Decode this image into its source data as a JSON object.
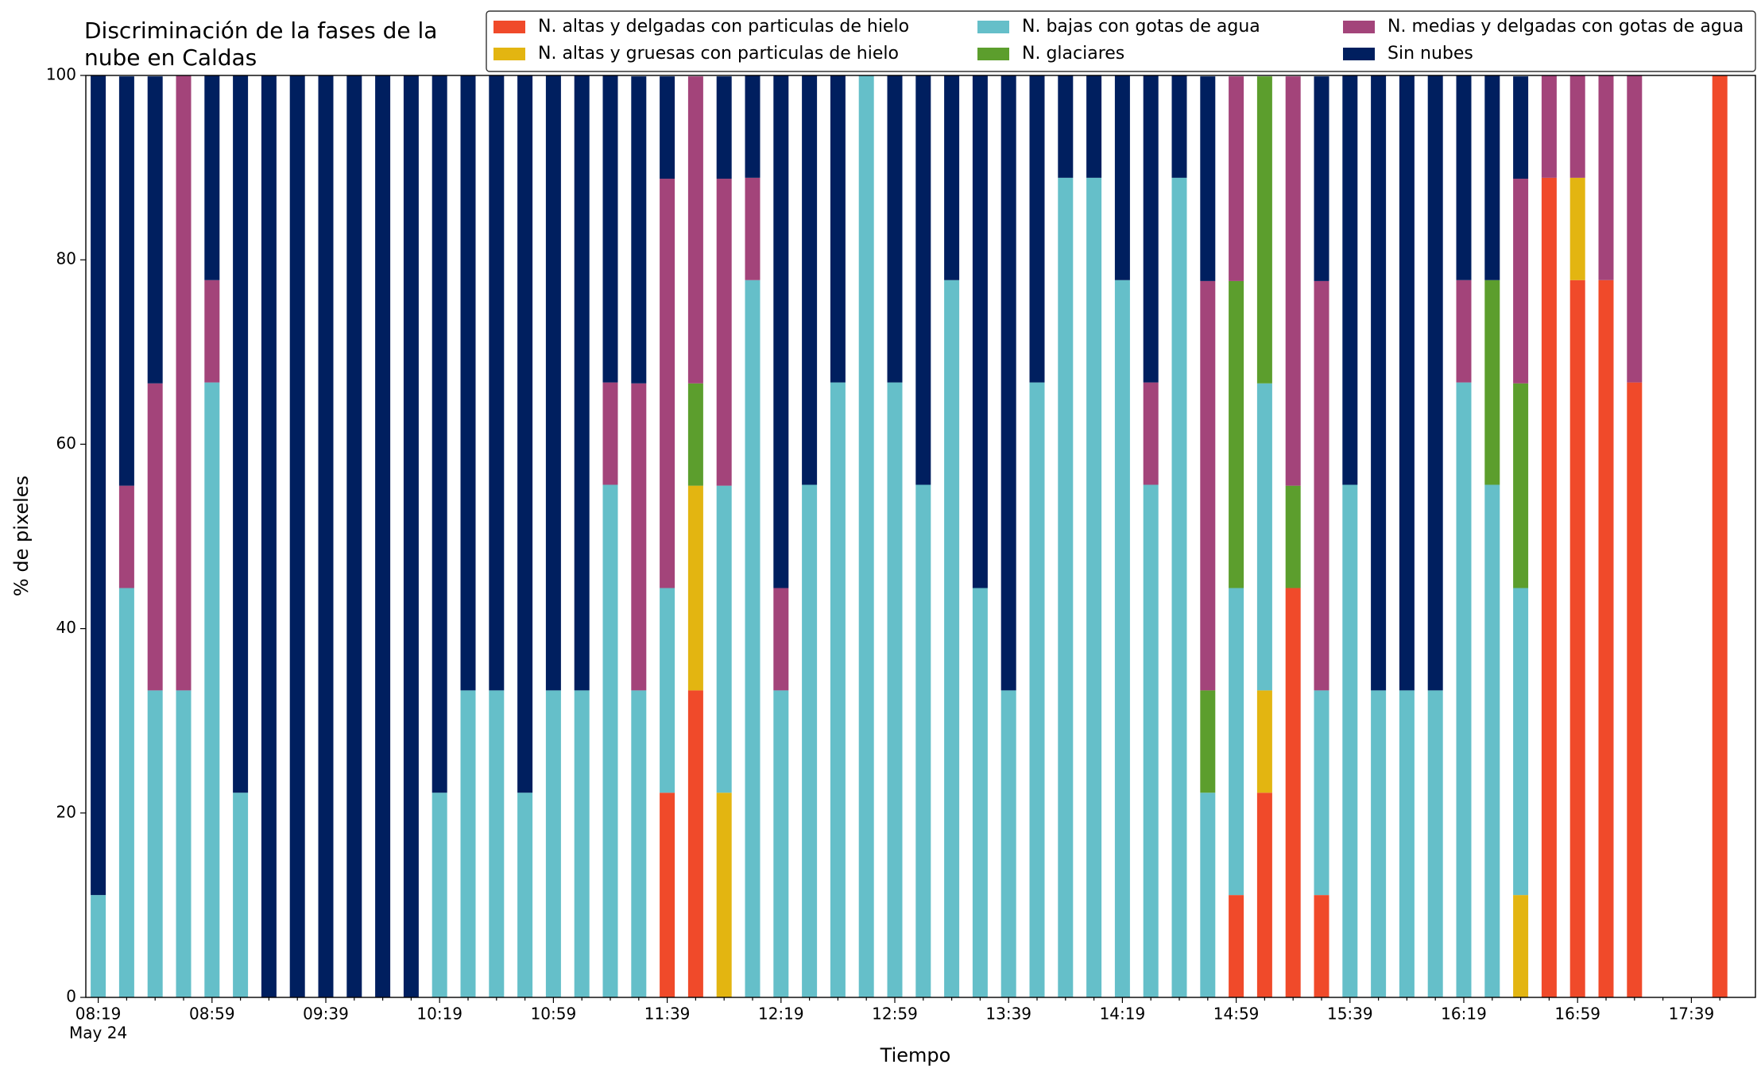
{
  "chart_data": {
    "type": "stacked_bar",
    "title_lines": [
      "Discriminación de la fases de la",
      "nube en Caldas"
    ],
    "xlabel": "Tiempo",
    "ylabel": "% de pixeles",
    "date_label": "May 24",
    "categories": [
      "08:19",
      null,
      null,
      null,
      "08:59",
      null,
      null,
      null,
      "09:39",
      null,
      null,
      null,
      "10:19",
      null,
      null,
      null,
      "10:59",
      null,
      null,
      null,
      "11:39",
      null,
      null,
      null,
      "12:19",
      null,
      null,
      null,
      "12:59",
      null,
      null,
      null,
      "13:39",
      null,
      null,
      null,
      "14:19",
      null,
      null,
      null,
      "14:59",
      null,
      null,
      null,
      "15:39",
      null,
      null,
      null,
      "16:19",
      null,
      null,
      null,
      "16:59",
      null,
      null,
      null,
      "17:39",
      null
    ],
    "ylim": [
      0,
      100
    ],
    "yticks": [
      0,
      20,
      40,
      60,
      80,
      100
    ],
    "legend": "top-right",
    "series": [
      {
        "name": "N. altas y delgadas con particulas de hielo",
        "color": "#f04a2a",
        "values": [
          0,
          0,
          0,
          0,
          0,
          0,
          0,
          0,
          0,
          0,
          0,
          0,
          0,
          0,
          0,
          0,
          0,
          0,
          0,
          0,
          22.2,
          33.3,
          0,
          0,
          0,
          0,
          0,
          0,
          0,
          0,
          0,
          0,
          0,
          0,
          0,
          0,
          0,
          0,
          0,
          0,
          11.1,
          22.2,
          44.4,
          11.1,
          0,
          0,
          0,
          0,
          0,
          0,
          0,
          88.9,
          77.8,
          77.8,
          66.7,
          0,
          0,
          100
        ]
      },
      {
        "name": "N. altas y gruesas con particulas de hielo",
        "color": "#e3b511",
        "values": [
          0,
          0,
          0,
          0,
          0,
          0,
          0,
          0,
          0,
          0,
          0,
          0,
          0,
          0,
          0,
          0,
          0,
          0,
          0,
          0,
          0,
          22.2,
          22.2,
          0,
          0,
          0,
          0,
          0,
          0,
          0,
          0,
          0,
          0,
          0,
          0,
          0,
          0,
          0,
          0,
          0,
          0,
          11.1,
          0,
          0,
          0,
          0,
          0,
          0,
          0,
          0,
          11.1,
          0,
          11.1,
          0,
          0,
          0,
          0,
          0
        ]
      },
      {
        "name": "N. bajas con gotas de agua",
        "color": "#65bfc9",
        "values": [
          11.1,
          44.4,
          33.3,
          33.3,
          66.7,
          22.2,
          0,
          0,
          0,
          0,
          0,
          0,
          22.2,
          33.3,
          33.3,
          22.2,
          33.3,
          33.3,
          55.6,
          33.3,
          22.2,
          0,
          33.3,
          77.8,
          33.3,
          55.6,
          66.7,
          100,
          66.7,
          55.6,
          77.8,
          44.4,
          33.3,
          66.7,
          88.9,
          88.9,
          77.8,
          55.6,
          88.9,
          22.2,
          33.3,
          33.3,
          0,
          22.2,
          55.6,
          33.3,
          33.3,
          33.3,
          66.7,
          55.6,
          33.3,
          0,
          0,
          0,
          0,
          0,
          0,
          0
        ]
      },
      {
        "name": "N. glaciares",
        "color": "#5c9e2d",
        "values": [
          0,
          0,
          0,
          0,
          0,
          0,
          0,
          0,
          0,
          0,
          0,
          0,
          0,
          0,
          0,
          0,
          0,
          0,
          0,
          0,
          0,
          11.1,
          0,
          0,
          0,
          0,
          0,
          0,
          0,
          0,
          0,
          0,
          0,
          0,
          0,
          0,
          0,
          0,
          0,
          11.1,
          33.3,
          33.3,
          11.1,
          0,
          0,
          0,
          0,
          0,
          0,
          22.2,
          22.2,
          0,
          0,
          0,
          0,
          0,
          0,
          0
        ]
      },
      {
        "name": "N. medias y delgadas con gotas de agua",
        "color": "#a3447a",
        "values": [
          0,
          11.1,
          33.3,
          66.7,
          11.1,
          0,
          0,
          0,
          0,
          0,
          0,
          0,
          0,
          0,
          0,
          0,
          0,
          0,
          11.1,
          33.3,
          44.4,
          33.3,
          33.3,
          11.1,
          11.1,
          0,
          0,
          0,
          0,
          0,
          0,
          0,
          0,
          0,
          0,
          0,
          0,
          11.1,
          0,
          44.4,
          22.2,
          0,
          44.4,
          44.4,
          0,
          0,
          0,
          0,
          11.1,
          0,
          22.2,
          11.1,
          11.1,
          22.2,
          33.3,
          0,
          0,
          0
        ]
      },
      {
        "name": "Sin nubes",
        "color": "#001f5f",
        "values": [
          88.9,
          44.4,
          33.3,
          0,
          22.2,
          77.8,
          100,
          100,
          100,
          100,
          100,
          100,
          77.8,
          66.7,
          66.7,
          77.8,
          66.7,
          66.7,
          33.3,
          33.3,
          11.1,
          0,
          11.1,
          11.1,
          55.6,
          44.4,
          33.3,
          0,
          33.3,
          44.4,
          22.2,
          55.6,
          66.7,
          33.3,
          11.1,
          11.1,
          22.2,
          33.3,
          11.1,
          22.2,
          0,
          0,
          0,
          22.2,
          44.4,
          66.7,
          66.7,
          66.7,
          22.2,
          22.2,
          11.1,
          0,
          0,
          0,
          0,
          0,
          0,
          0
        ]
      }
    ]
  }
}
